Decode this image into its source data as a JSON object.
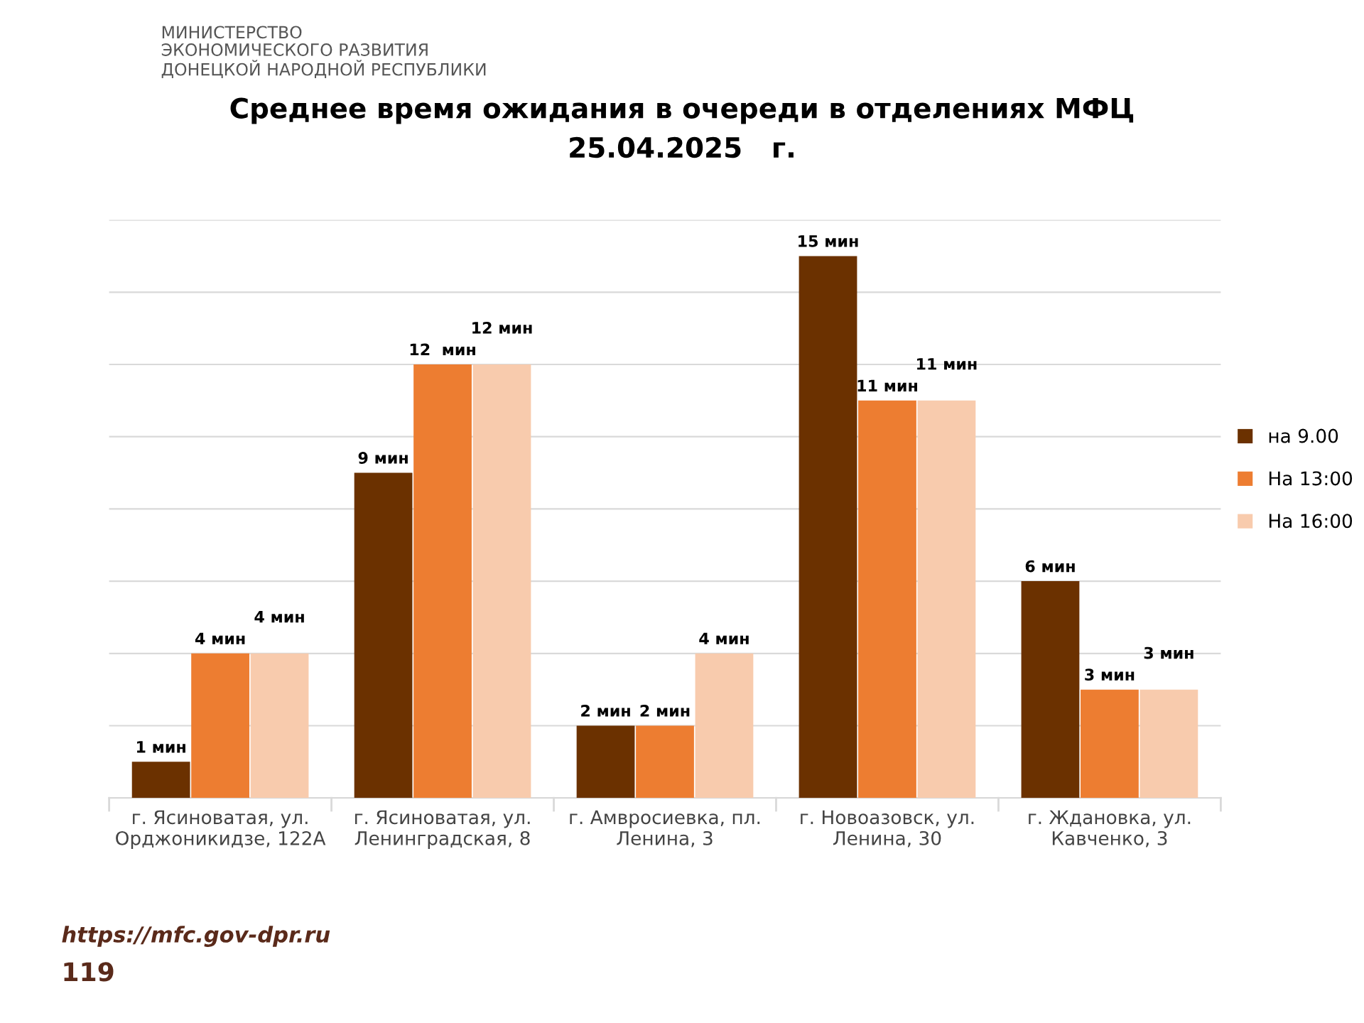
{
  "chart_data": {
    "type": "bar",
    "title": "Среднее время ожидания в очереди в отделениях МФЦ\n25.04.2025   г.",
    "categories": [
      "г. Ясиноватая, ул.\nОрджоникидзе, 122А",
      "г. Ясиноватая, ул.\nЛенинградская, 8",
      "г. Амвросиевка, пл.\nЛенина, 3",
      "г. Новоазовск, ул.\nЛенина, 30",
      "г. Ждановка, ул.\nКавченко, 3"
    ],
    "series": [
      {
        "name": "на 9.00",
        "color": "#6b3100",
        "values": [
          1,
          9,
          2,
          15,
          6
        ],
        "value_labels": [
          "1 мин",
          "9 мин",
          "2 мин",
          "15 мин",
          "6 мин"
        ]
      },
      {
        "name": "На 13:00",
        "color": "#ed7d31",
        "values": [
          4,
          12,
          2,
          11,
          3
        ],
        "value_labels": [
          "4 мин",
          "12  мин",
          "2 мин",
          "11 мин",
          "3 мин"
        ]
      },
      {
        "name": "На 16:00",
        "color": "#f8cbad",
        "values": [
          4,
          12,
          4,
          11,
          3
        ],
        "value_labels": [
          "4 мин",
          "12 мин",
          "4 мин",
          "11 мин",
          "3 мин"
        ]
      }
    ],
    "ylim": [
      0,
      16
    ],
    "yticks": [
      {
        "value": 0,
        "label": null
      },
      {
        "value": 2,
        "label": null
      },
      {
        "value": 4,
        "label": null
      },
      {
        "value": 6,
        "label": null
      },
      {
        "value": 8,
        "label": null
      },
      {
        "value": 10,
        "label": null
      },
      {
        "value": 12,
        "label": null
      },
      {
        "value": 14,
        "label": null
      },
      {
        "value": 16,
        "label": null
      }
    ],
    "tick_labels": "x",
    "grid": "y",
    "legend": "right",
    "annotations": [
      "МИНИСТЕРСТВО\nЭКОНОМИЧЕСКОГО РАЗВИТИЯ\nДОНЕЦКОЙ НАРОДНОЙ РЕСПУБЛИКИ",
      "https://mfc.gov-dpr.ru",
      "119"
    ]
  }
}
